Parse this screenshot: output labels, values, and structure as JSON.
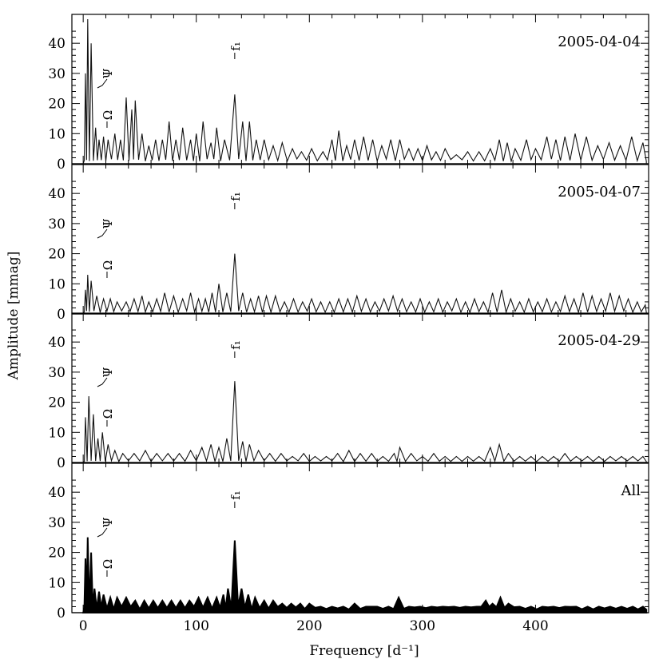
{
  "chart_data": {
    "type": "line",
    "xlabel": "Frequency [d⁻¹]",
    "ylabel": "Amplitude [mmag]",
    "xlim": [
      -10,
      500
    ],
    "ylim": [
      0,
      48
    ],
    "x_ticks": [
      0,
      100,
      200,
      300,
      400
    ],
    "y_ticks": [
      0,
      10,
      20,
      30,
      40
    ],
    "frequency_marks": [
      {
        "label": "f₁",
        "x": 134
      },
      {
        "label": "Ψ",
        "x": 14
      },
      {
        "label": "Ω",
        "x": 14
      }
    ],
    "panels": [
      {
        "label": "2005-04-04",
        "series": {
          "peaks": [
            [
              2,
              30
            ],
            [
              4,
              48
            ],
            [
              7,
              40
            ],
            [
              11,
              12
            ],
            [
              14,
              8
            ],
            [
              18,
              9
            ],
            [
              22,
              8
            ],
            [
              28,
              10
            ],
            [
              33,
              8
            ],
            [
              38,
              22
            ],
            [
              43,
              18
            ],
            [
              46,
              21
            ],
            [
              52,
              10
            ],
            [
              58,
              6
            ],
            [
              64,
              8
            ],
            [
              70,
              8
            ],
            [
              76,
              14
            ],
            [
              82,
              8
            ],
            [
              88,
              12
            ],
            [
              95,
              8
            ],
            [
              100,
              10
            ],
            [
              106,
              14
            ],
            [
              113,
              7
            ],
            [
              118,
              12
            ],
            [
              125,
              8
            ],
            [
              134,
              23
            ],
            [
              141,
              14
            ],
            [
              147,
              14
            ],
            [
              153,
              8
            ],
            [
              160,
              8
            ],
            [
              168,
              6
            ],
            [
              176,
              7
            ],
            [
              185,
              5
            ],
            [
              193,
              4
            ],
            [
              202,
              5
            ],
            [
              212,
              4
            ],
            [
              220,
              8
            ],
            [
              226,
              11
            ],
            [
              233,
              6
            ],
            [
              240,
              8
            ],
            [
              248,
              9
            ],
            [
              256,
              8
            ],
            [
              264,
              6
            ],
            [
              272,
              8
            ],
            [
              280,
              8
            ],
            [
              288,
              5
            ],
            [
              296,
              5
            ],
            [
              304,
              6
            ],
            [
              312,
              4
            ],
            [
              320,
              5
            ],
            [
              330,
              3
            ],
            [
              340,
              4
            ],
            [
              350,
              4
            ],
            [
              360,
              5
            ],
            [
              368,
              8
            ],
            [
              375,
              7
            ],
            [
              382,
              5
            ],
            [
              392,
              8
            ],
            [
              400,
              5
            ],
            [
              410,
              9
            ],
            [
              418,
              8
            ],
            [
              426,
              9
            ],
            [
              435,
              10
            ],
            [
              445,
              9
            ],
            [
              455,
              6
            ],
            [
              465,
              7
            ],
            [
              475,
              6
            ],
            [
              485,
              9
            ],
            [
              495,
              7
            ]
          ],
          "floor": 0.8
        }
      },
      {
        "label": "2005-04-07",
        "series": {
          "peaks": [
            [
              2,
              8
            ],
            [
              4,
              13
            ],
            [
              7,
              11
            ],
            [
              12,
              6
            ],
            [
              18,
              5
            ],
            [
              24,
              5
            ],
            [
              30,
              4
            ],
            [
              38,
              4
            ],
            [
              45,
              5
            ],
            [
              52,
              6
            ],
            [
              58,
              4
            ],
            [
              65,
              5
            ],
            [
              72,
              7
            ],
            [
              80,
              6
            ],
            [
              88,
              5
            ],
            [
              95,
              7
            ],
            [
              102,
              5
            ],
            [
              108,
              5
            ],
            [
              114,
              7
            ],
            [
              120,
              10
            ],
            [
              127,
              7
            ],
            [
              134,
              20
            ],
            [
              141,
              7
            ],
            [
              148,
              5
            ],
            [
              155,
              6
            ],
            [
              162,
              6
            ],
            [
              170,
              6
            ],
            [
              178,
              4
            ],
            [
              186,
              5
            ],
            [
              194,
              4
            ],
            [
              202,
              5
            ],
            [
              210,
              4
            ],
            [
              218,
              4
            ],
            [
              226,
              5
            ],
            [
              234,
              5
            ],
            [
              242,
              6
            ],
            [
              250,
              5
            ],
            [
              258,
              4
            ],
            [
              266,
              5
            ],
            [
              274,
              6
            ],
            [
              282,
              5
            ],
            [
              290,
              4
            ],
            [
              298,
              5
            ],
            [
              306,
              4
            ],
            [
              314,
              5
            ],
            [
              322,
              4
            ],
            [
              330,
              5
            ],
            [
              338,
              4
            ],
            [
              346,
              5
            ],
            [
              354,
              4
            ],
            [
              362,
              7
            ],
            [
              370,
              8
            ],
            [
              378,
              5
            ],
            [
              386,
              4
            ],
            [
              394,
              5
            ],
            [
              402,
              4
            ],
            [
              410,
              5
            ],
            [
              418,
              4
            ],
            [
              426,
              6
            ],
            [
              434,
              5
            ],
            [
              442,
              7
            ],
            [
              450,
              6
            ],
            [
              458,
              5
            ],
            [
              466,
              7
            ],
            [
              474,
              6
            ],
            [
              482,
              5
            ],
            [
              490,
              4
            ],
            [
              497,
              3
            ]
          ],
          "floor": 0.5
        }
      },
      {
        "label": "2005-04-29",
        "series": {
          "peaks": [
            [
              2,
              15
            ],
            [
              5,
              22
            ],
            [
              9,
              16
            ],
            [
              13,
              8
            ],
            [
              17,
              10
            ],
            [
              22,
              6
            ],
            [
              28,
              4
            ],
            [
              35,
              3
            ],
            [
              45,
              3
            ],
            [
              55,
              4
            ],
            [
              65,
              3
            ],
            [
              75,
              3
            ],
            [
              85,
              3
            ],
            [
              95,
              4
            ],
            [
              105,
              5
            ],
            [
              113,
              6
            ],
            [
              120,
              5
            ],
            [
              127,
              8
            ],
            [
              134,
              27
            ],
            [
              141,
              7
            ],
            [
              147,
              6
            ],
            [
              155,
              4
            ],
            [
              165,
              3
            ],
            [
              175,
              3
            ],
            [
              185,
              2
            ],
            [
              195,
              3
            ],
            [
              205,
              2
            ],
            [
              215,
              2
            ],
            [
              225,
              3
            ],
            [
              235,
              4
            ],
            [
              245,
              3
            ],
            [
              255,
              3
            ],
            [
              265,
              2
            ],
            [
              275,
              3
            ],
            [
              280,
              5
            ],
            [
              290,
              3
            ],
            [
              300,
              2
            ],
            [
              310,
              3
            ],
            [
              320,
              2
            ],
            [
              330,
              2
            ],
            [
              340,
              2
            ],
            [
              350,
              2
            ],
            [
              360,
              5
            ],
            [
              368,
              6
            ],
            [
              376,
              3
            ],
            [
              386,
              2
            ],
            [
              396,
              2
            ],
            [
              406,
              2
            ],
            [
              416,
              2
            ],
            [
              426,
              3
            ],
            [
              436,
              2
            ],
            [
              446,
              2
            ],
            [
              456,
              2
            ],
            [
              466,
              2
            ],
            [
              476,
              2
            ],
            [
              486,
              2
            ],
            [
              495,
              2
            ]
          ],
          "floor": 0.3
        }
      },
      {
        "label": "All",
        "series": {
          "peaks": [
            [
              2,
              18
            ],
            [
              4,
              25
            ],
            [
              7,
              20
            ],
            [
              10,
              8
            ],
            [
              14,
              7
            ],
            [
              18,
              6
            ],
            [
              24,
              5
            ],
            [
              30,
              5
            ],
            [
              38,
              5
            ],
            [
              46,
              4
            ],
            [
              54,
              4
            ],
            [
              62,
              4
            ],
            [
              70,
              4
            ],
            [
              78,
              4
            ],
            [
              86,
              4
            ],
            [
              94,
              4
            ],
            [
              102,
              5
            ],
            [
              110,
              5
            ],
            [
              118,
              5
            ],
            [
              124,
              6
            ],
            [
              128,
              8
            ],
            [
              134,
              24
            ],
            [
              140,
              8
            ],
            [
              146,
              6
            ],
            [
              152,
              5
            ],
            [
              160,
              4
            ],
            [
              168,
              4
            ],
            [
              176,
              3
            ],
            [
              184,
              3
            ],
            [
              192,
              3
            ],
            [
              200,
              3
            ],
            [
              210,
              2
            ],
            [
              220,
              2
            ],
            [
              230,
              2
            ],
            [
              240,
              3
            ],
            [
              250,
              2
            ],
            [
              260,
              2
            ],
            [
              270,
              2
            ],
            [
              279,
              5
            ],
            [
              288,
              2
            ],
            [
              298,
              2
            ],
            [
              308,
              2
            ],
            [
              318,
              2
            ],
            [
              328,
              2
            ],
            [
              338,
              2
            ],
            [
              348,
              2
            ],
            [
              356,
              4
            ],
            [
              362,
              3
            ],
            [
              369,
              5
            ],
            [
              376,
              3
            ],
            [
              386,
              2
            ],
            [
              396,
              2
            ],
            [
              406,
              2
            ],
            [
              416,
              2
            ],
            [
              426,
              2
            ],
            [
              436,
              2
            ],
            [
              446,
              2
            ],
            [
              456,
              2
            ],
            [
              466,
              2
            ],
            [
              476,
              2
            ],
            [
              486,
              2
            ],
            [
              495,
              2
            ]
          ],
          "floor": 1.0
        }
      }
    ]
  }
}
